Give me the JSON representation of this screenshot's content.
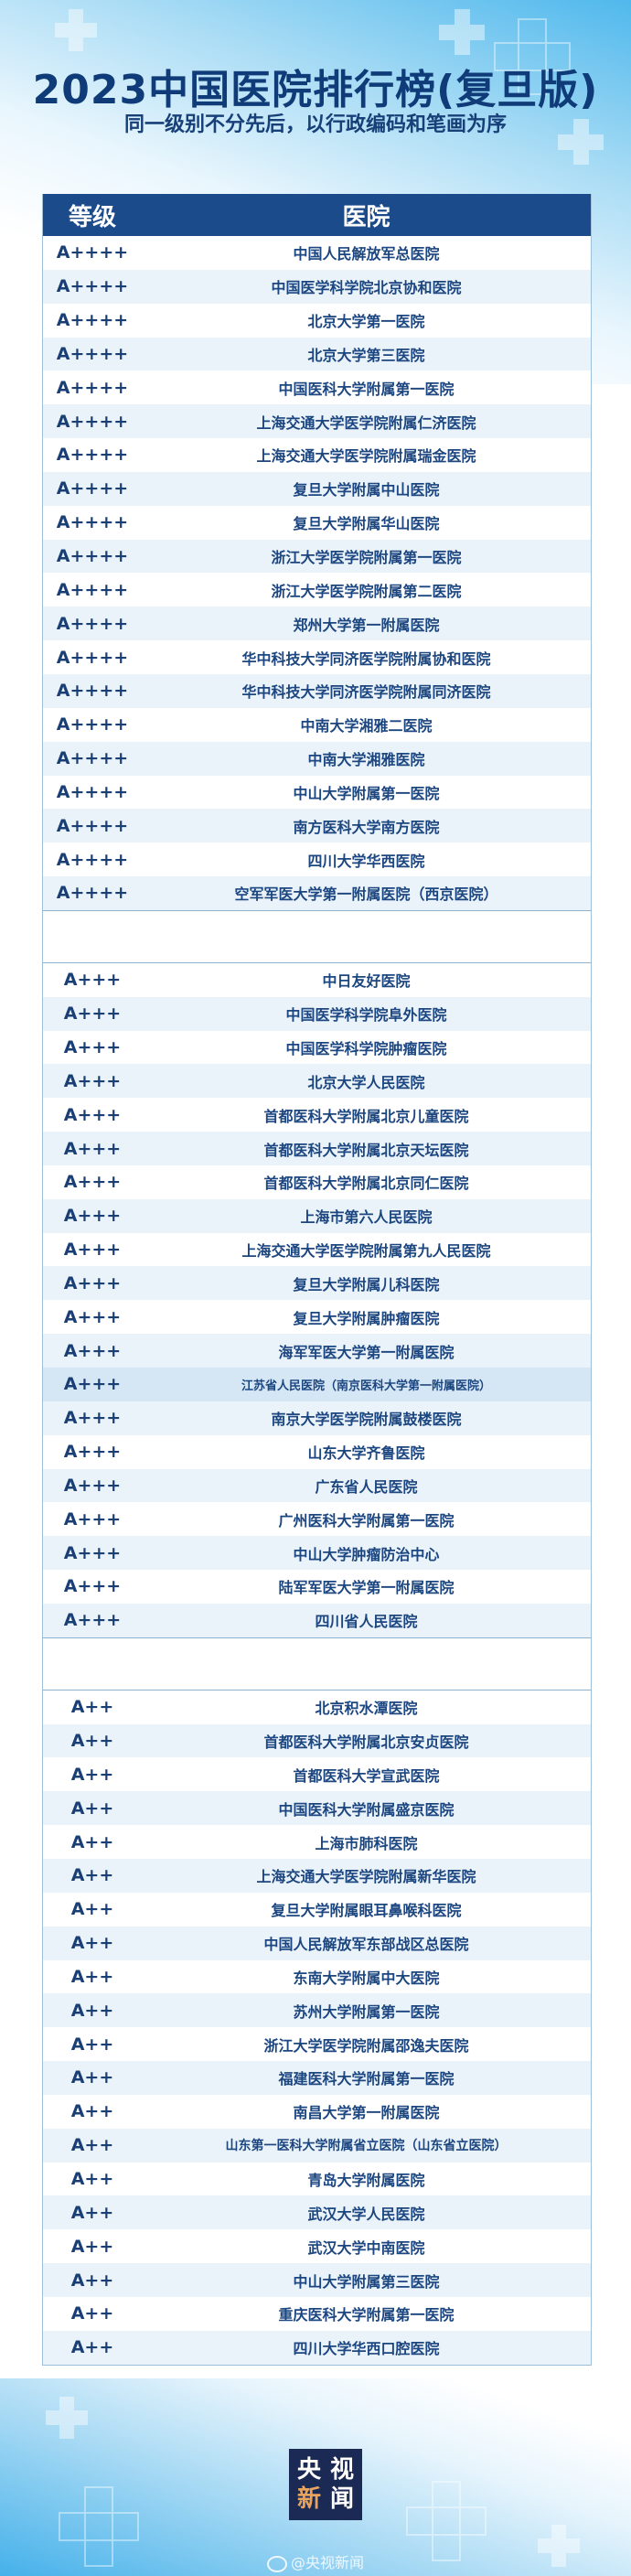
{
  "header": {
    "title": "2023中国医院排行榜(复旦版)",
    "subtitle": "同一级别不分先后，以行政编码和笔画为序"
  },
  "table": {
    "columns": [
      "等级",
      "医院"
    ],
    "groups": [
      {
        "grade": "A++++",
        "hospitals": [
          "中国人民解放军总医院",
          "中国医学科学院北京协和医院",
          "北京大学第一医院",
          "北京大学第三医院",
          "中国医科大学附属第一医院",
          "上海交通大学医学院附属仁济医院",
          "上海交通大学医学院附属瑞金医院",
          "复旦大学附属中山医院",
          "复旦大学附属华山医院",
          "浙江大学医学院附属第一医院",
          "浙江大学医学院附属第二医院",
          "郑州大学第一附属医院",
          "华中科技大学同济医学院附属协和医院",
          "华中科技大学同济医学院附属同济医院",
          "中南大学湘雅二医院",
          "中南大学湘雅医院",
          "中山大学附属第一医院",
          "南方医科大学南方医院",
          "四川大学华西医院",
          "空军军医大学第一附属医院（西京医院）"
        ]
      },
      {
        "grade": "A+++",
        "hospitals": [
          "中日友好医院",
          "中国医学科学院阜外医院",
          "中国医学科学院肿瘤医院",
          "北京大学人民医院",
          "首都医科大学附属北京儿童医院",
          "首都医科大学附属北京天坛医院",
          "首都医科大学附属北京同仁医院",
          "上海市第六人民医院",
          "上海交通大学医学院附属第九人民医院",
          "复旦大学附属儿科医院",
          "复旦大学附属肿瘤医院",
          "海军军医大学第一附属医院",
          "江苏省人民医院（南京医科大学第一附属医院）",
          "南京大学医学院附属鼓楼医院",
          "山东大学齐鲁医院",
          "广东省人民医院",
          "广州医科大学附属第一医院",
          "中山大学肿瘤防治中心",
          "陆军军医大学第一附属医院",
          "四川省人民医院"
        ]
      },
      {
        "grade": "A++",
        "hospitals": [
          "北京积水潭医院",
          "首都医科大学附属北京安贞医院",
          "首都医科大学宣武医院",
          "中国医科大学附属盛京医院",
          "上海市肺科医院",
          "上海交通大学医学院附属新华医院",
          "复旦大学附属眼耳鼻喉科医院",
          "中国人民解放军东部战区总医院",
          "东南大学附属中大医院",
          "苏州大学附属第一医院",
          "浙江大学医学院附属邵逸夫医院",
          "福建医科大学附属第一医院",
          "南昌大学第一附属医院",
          "山东第一医科大学附属省立医院（山东省立医院）",
          "青岛大学附属医院",
          "武汉大学人民医院",
          "武汉大学中南医院",
          "中山大学附属第三医院",
          "重庆医科大学附属第一医院",
          "四川大学华西口腔医院"
        ]
      }
    ],
    "highlighted_row": "江苏省人民医院（南京医科大学第一附属医院）"
  },
  "footer": {
    "logo_text": [
      "央",
      "视",
      "新",
      "闻"
    ],
    "weibo_handle": "@央视新闻",
    "weibo_icon": "weibo-icon"
  },
  "colors": {
    "title": "#0f3b78",
    "header_bar": "#1c4b8b",
    "row_stripe": "#eaf3fa",
    "logo_bg": "#1b2a55",
    "logo_accent": "#e8a45c"
  }
}
